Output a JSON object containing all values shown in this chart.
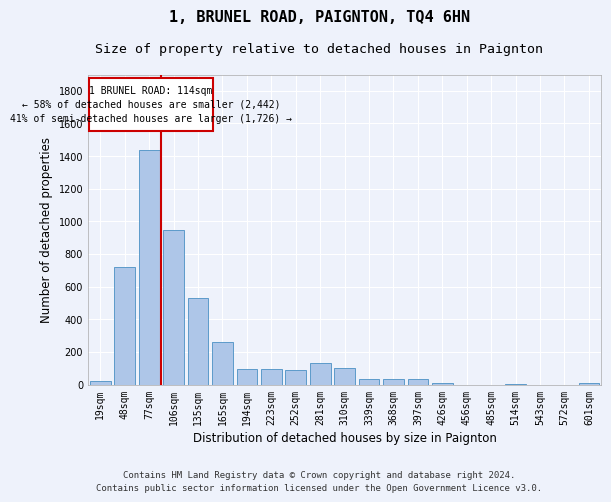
{
  "title": "1, BRUNEL ROAD, PAIGNTON, TQ4 6HN",
  "subtitle": "Size of property relative to detached houses in Paignton",
  "xlabel": "Distribution of detached houses by size in Paignton",
  "ylabel": "Number of detached properties",
  "categories": [
    "19sqm",
    "48sqm",
    "77sqm",
    "106sqm",
    "135sqm",
    "165sqm",
    "194sqm",
    "223sqm",
    "252sqm",
    "281sqm",
    "310sqm",
    "339sqm",
    "368sqm",
    "397sqm",
    "426sqm",
    "456sqm",
    "485sqm",
    "514sqm",
    "543sqm",
    "572sqm",
    "601sqm"
  ],
  "values": [
    20,
    720,
    1440,
    950,
    530,
    260,
    95,
    95,
    90,
    130,
    100,
    35,
    35,
    35,
    10,
    0,
    0,
    5,
    0,
    0,
    10
  ],
  "bar_color": "#aec6e8",
  "bar_edge_color": "#4a90c4",
  "annotation_line1": "1 BRUNEL ROAD: 114sqm",
  "annotation_line2": "← 58% of detached houses are smaller (2,442)",
  "annotation_line3": "41% of semi-detached houses are larger (1,726) →",
  "annotation_box_edge_color": "#cc0000",
  "marker_line_color": "#cc0000",
  "ylim": [
    0,
    1900
  ],
  "yticks": [
    0,
    200,
    400,
    600,
    800,
    1000,
    1200,
    1400,
    1600,
    1800
  ],
  "footnote_line1": "Contains HM Land Registry data © Crown copyright and database right 2024.",
  "footnote_line2": "Contains public sector information licensed under the Open Government Licence v3.0.",
  "bg_color": "#eef2fb",
  "plot_bg_color": "#eef2fb",
  "grid_color": "#ffffff",
  "title_fontsize": 11,
  "subtitle_fontsize": 9.5,
  "label_fontsize": 8.5,
  "tick_fontsize": 7,
  "footnote_fontsize": 6.5
}
